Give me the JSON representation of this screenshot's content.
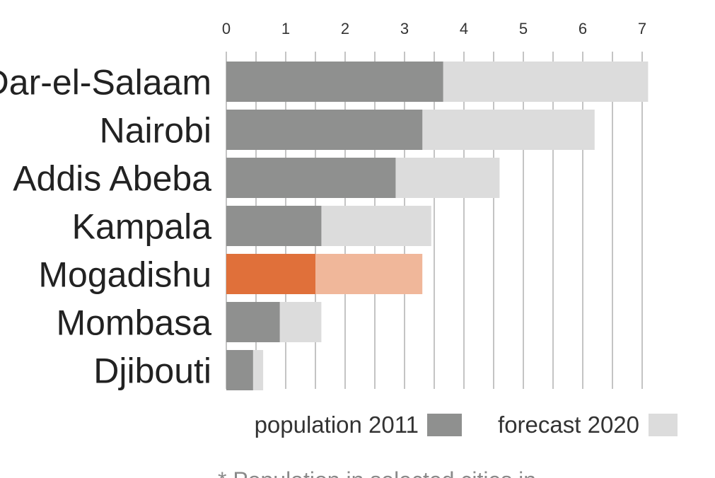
{
  "chart_data": {
    "type": "bar",
    "orientation": "horizontal",
    "categories": [
      "Dar-el-Salaam",
      "Nairobi",
      "Addis Abeba",
      "Kampala",
      "Mogadishu",
      "Mombasa",
      "Djibouti"
    ],
    "series": [
      {
        "name": "population 2011",
        "values": [
          3.65,
          3.3,
          2.85,
          1.6,
          1.5,
          0.9,
          0.45
        ]
      },
      {
        "name": "forecast 2020",
        "values": [
          7.1,
          6.2,
          4.6,
          3.45,
          3.3,
          1.6,
          0.62
        ]
      }
    ],
    "highlight": {
      "category": "Mogadishu",
      "colors": {
        "population 2011": "#e0703a",
        "forecast 2020": "#f0b79a"
      }
    },
    "colors": {
      "population 2011": "#8f908f",
      "forecast 2020": "#dcdcdc",
      "grid": "#aaaaaa"
    },
    "xlim": [
      0,
      7
    ],
    "xticks": [
      "0",
      "1",
      "2",
      "3",
      "4",
      "5",
      "6",
      "7"
    ],
    "grid": "vertical, minor every 0.5",
    "axis_position": "top",
    "legend": {
      "placement": "bottom",
      "items": [
        {
          "label": "population 2011",
          "color": "#8f908f"
        },
        {
          "label": "forecast 2020",
          "color": "#dcdcdc"
        }
      ]
    },
    "title": "",
    "xlabel": "",
    "ylabel": "",
    "footnote": "* Population in selected cities in"
  }
}
